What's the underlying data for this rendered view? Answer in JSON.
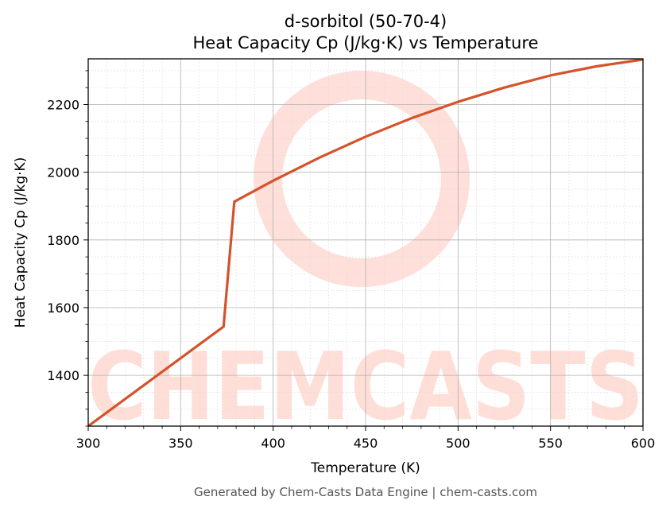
{
  "colors": {
    "line": "#d4532a",
    "watermark": "#ffd9d2",
    "grid_major": "#b0b0b0",
    "grid_minor": "#dddddd",
    "footer": "#555555"
  },
  "watermark": {
    "text": "CHEMCASTS"
  },
  "footer": {
    "text": "Generated by Chem-Casts Data Engine | chem-casts.com"
  },
  "chart_data": {
    "type": "line",
    "title": "d-sorbitol (50-70-4)",
    "subtitle": "Heat Capacity Cp (J/kg·K) vs Temperature",
    "xlabel": "Temperature (K)",
    "ylabel": "Heat Capacity Cp (J/kg·K)",
    "xlim": [
      300,
      600
    ],
    "ylim": [
      1250,
      2335
    ],
    "xticks": [
      300,
      350,
      400,
      450,
      500,
      550,
      600
    ],
    "yticks": [
      1400,
      1600,
      1800,
      2000,
      2200
    ],
    "grid": true,
    "series": [
      {
        "x": [
          300,
          373.2,
          379,
          400,
          425,
          450,
          475,
          500,
          525,
          550,
          575,
          600
        ],
        "y": [
          1250,
          1544,
          1913,
          1975,
          2043,
          2105,
          2160,
          2208,
          2250,
          2286,
          2313,
          2333
        ]
      }
    ]
  }
}
